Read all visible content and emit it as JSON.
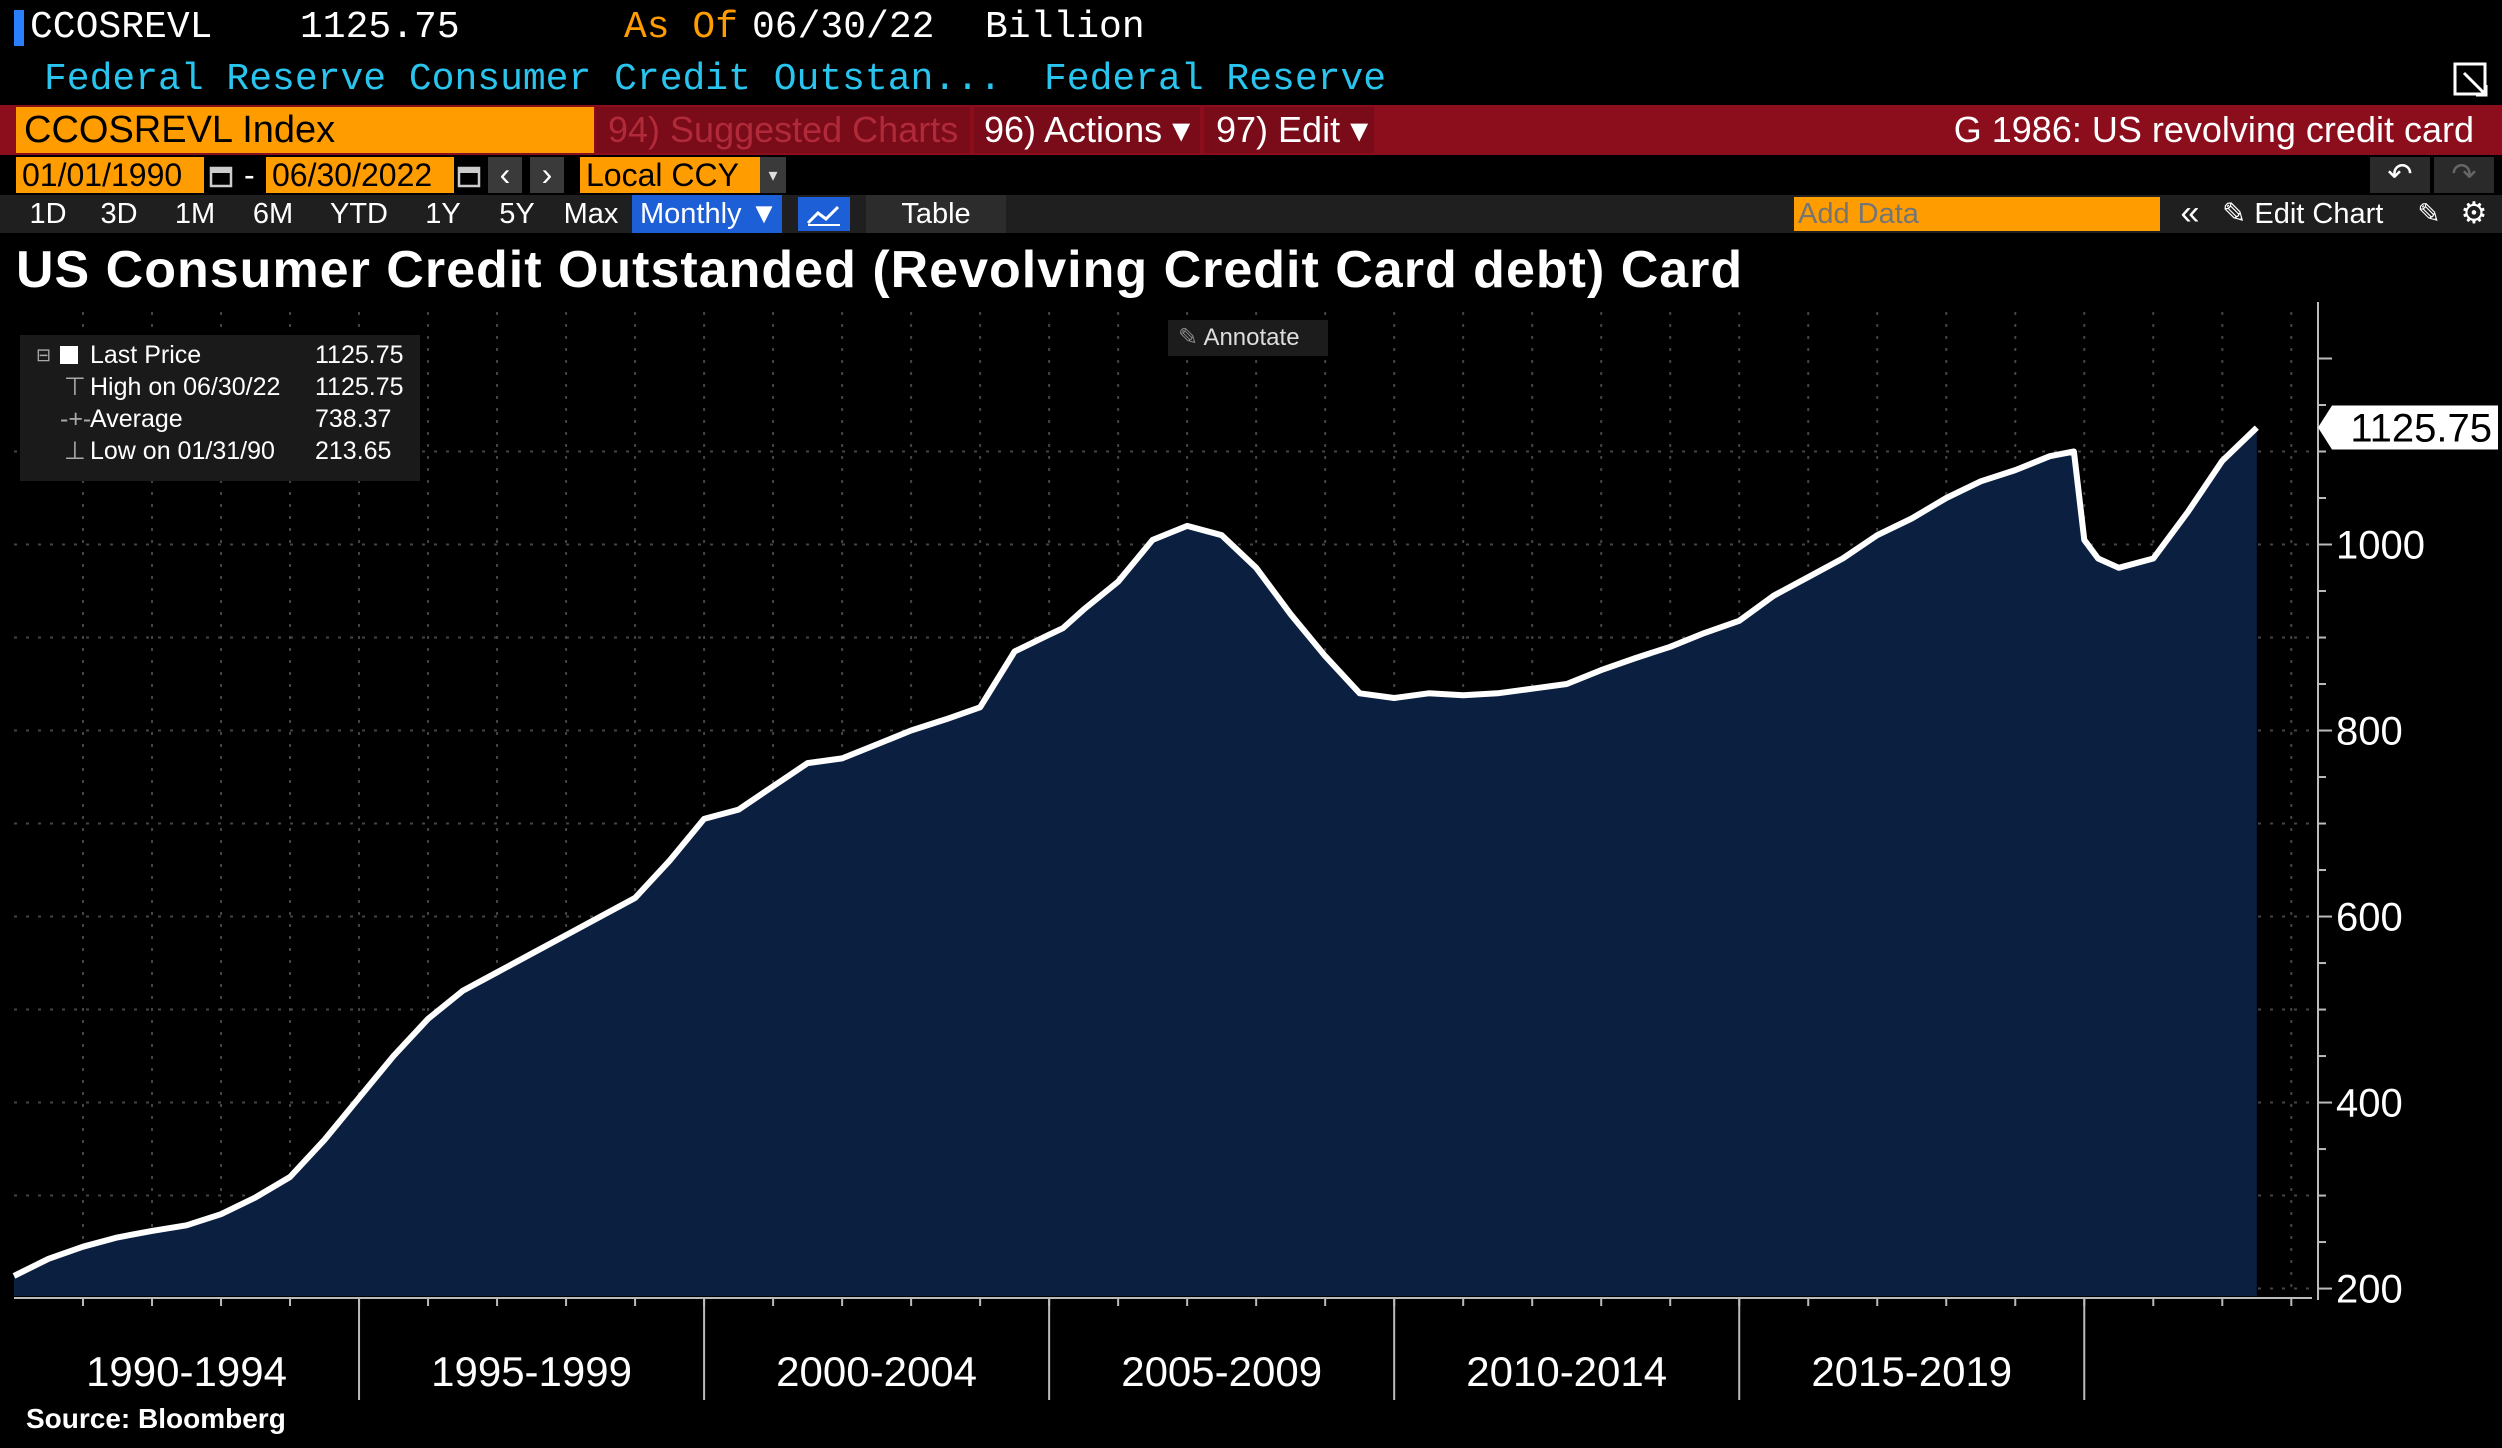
{
  "header": {
    "ticker": "CCOSREVL",
    "last": "1125.75",
    "as_of_label": "As Of",
    "as_of_date": "06/30/22",
    "units": "Billion",
    "description": "Federal Reserve Consumer Credit Outstan...",
    "source_name": "Federal Reserve"
  },
  "toolbar": {
    "security": "CCOSREVL Index",
    "suggested": "94) Suggested Charts",
    "actions": "96) Actions ▾",
    "edit": "97) Edit ▾",
    "chart_name": "G 1986: US revolving credit card",
    "start_date": "01/01/1990",
    "end_date": "06/30/2022",
    "dash": "-",
    "currency": "Local CCY",
    "prev": "‹",
    "next": "›",
    "undo": "↶",
    "redo": "↷"
  },
  "periods": [
    "1D",
    "3D",
    "1M",
    "6M",
    "YTD",
    "1Y",
    "5Y",
    "Max"
  ],
  "frequency": "Monthly ▼",
  "table_label": "Table",
  "add_data_placeholder": "Add Data",
  "collapse": "«",
  "edit_chart": "Edit Chart",
  "annotate": "Annotate",
  "legend": {
    "rows": [
      {
        "label": "Last Price",
        "value": "1125.75"
      },
      {
        "label": "High on 06/30/22",
        "value": "1125.75"
      },
      {
        "label": "Average",
        "value": "738.37"
      },
      {
        "label": "Low on 01/31/90",
        "value": "213.65"
      }
    ]
  },
  "colors": {
    "line": "#ffffff",
    "fill": "#0b2040",
    "accent_orange": "#ff9c00",
    "bar_red": "#8c0d1c",
    "header_cyan": "#29c5ee"
  },
  "chart_data": {
    "type": "area",
    "title": "US Consumer Credit Outstanded (Revolving Credit Card debt) Card",
    "xlabel": "",
    "ylabel": "",
    "x_range": [
      1990.0,
      2023.3
    ],
    "ylim": [
      192,
      1250
    ],
    "y_ticks": [
      200,
      400,
      600,
      800,
      1000
    ],
    "x_period_labels": [
      "1990-1994",
      "1995-1999",
      "2000-2004",
      "2005-2009",
      "2010-2014",
      "2015-2019"
    ],
    "x_period_bounds": [
      1990,
      1995,
      2000,
      2005,
      2010,
      2015,
      2020
    ],
    "last_value_label": "1125.75",
    "series": [
      {
        "name": "CCOSREVL Index",
        "x": [
          1990.0,
          1990.5,
          1991.0,
          1991.5,
          1992.0,
          1992.5,
          1993.0,
          1993.5,
          1994.0,
          1994.5,
          1995.0,
          1995.5,
          1996.0,
          1996.5,
          1997.0,
          1997.5,
          1998.0,
          1998.5,
          1999.0,
          1999.5,
          2000.0,
          2000.5,
          2001.0,
          2001.5,
          2002.0,
          2002.5,
          2003.0,
          2003.5,
          2004.0,
          2004.5,
          2005.0,
          2005.2,
          2005.5,
          2006.0,
          2006.5,
          2007.0,
          2007.5,
          2008.0,
          2008.5,
          2009.0,
          2009.5,
          2010.0,
          2010.5,
          2011.0,
          2011.5,
          2012.0,
          2012.5,
          2013.0,
          2013.5,
          2014.0,
          2014.5,
          2015.0,
          2015.5,
          2016.0,
          2016.5,
          2017.0,
          2017.5,
          2018.0,
          2018.5,
          2019.0,
          2019.5,
          2019.85,
          2020.0,
          2020.2,
          2020.5,
          2021.0,
          2021.5,
          2022.0,
          2022.5
        ],
        "values": [
          213.65,
          232,
          245,
          255,
          262,
          268,
          280,
          298,
          320,
          360,
          405,
          450,
          490,
          520,
          540,
          560,
          580,
          600,
          620,
          660,
          705,
          715,
          740,
          765,
          770,
          785,
          800,
          812,
          825,
          885,
          903,
          910,
          930,
          960,
          1005,
          1020,
          1010,
          975,
          925,
          880,
          840,
          835,
          840,
          838,
          840,
          845,
          850,
          865,
          878,
          890,
          905,
          918,
          945,
          965,
          985,
          1010,
          1028,
          1050,
          1068,
          1080,
          1095,
          1100,
          1005,
          985,
          975,
          985,
          1035,
          1090,
          1125.75
        ]
      }
    ]
  },
  "source": "Source: Bloomberg"
}
